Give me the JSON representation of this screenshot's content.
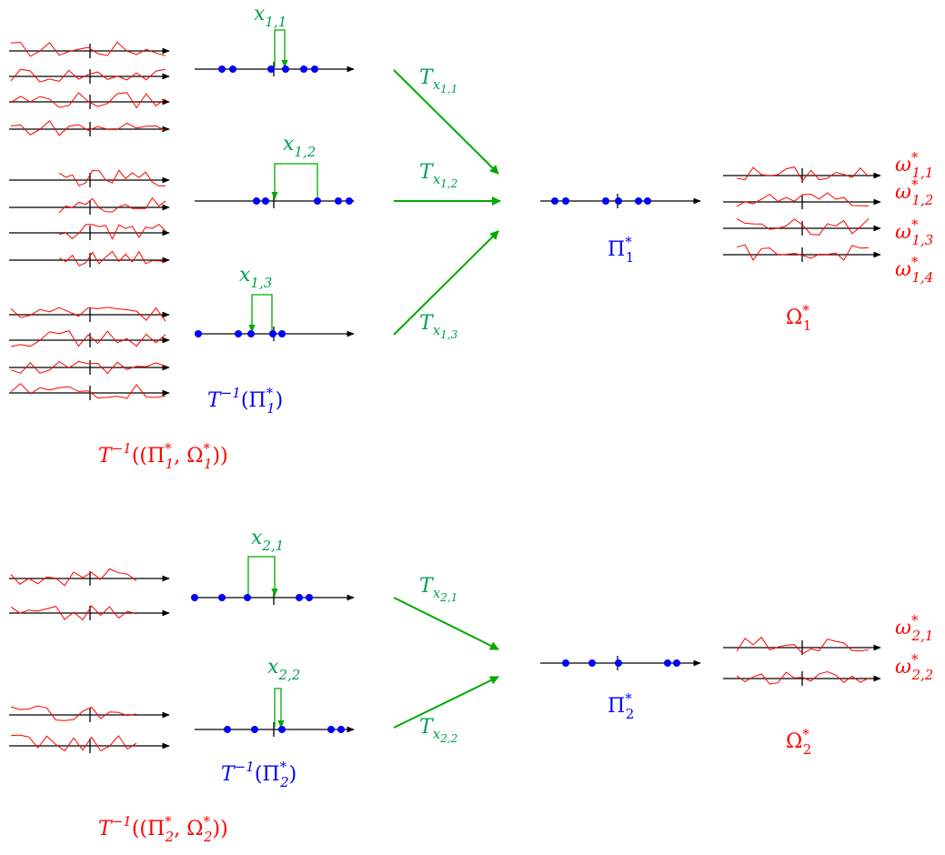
{
  "colors": {
    "axis": "#000000",
    "path": "#ff0000",
    "point": "#0000ff",
    "shift": "#00aa00",
    "label_green": "#00a050",
    "label_blue": "#0000ff",
    "label_red": "#ff0000"
  },
  "group1": {
    "shift_labels": [
      {
        "base": "x",
        "sub": "1,1"
      },
      {
        "base": "x",
        "sub": "1,2"
      },
      {
        "base": "x",
        "sub": "1,3"
      }
    ],
    "map_labels": [
      {
        "base": "T",
        "sub": "x",
        "subsub": "1,1"
      },
      {
        "base": "T",
        "sub": "x",
        "subsub": "1,2"
      },
      {
        "base": "T",
        "sub": "x",
        "subsub": "1,3"
      }
    ],
    "pi_label": {
      "base": "Π",
      "sup": "*",
      "sub": "1"
    },
    "omega_label": {
      "base": "Ω",
      "sup": "*",
      "sub": "1"
    },
    "omega_items": [
      {
        "base": "ω",
        "sup": "*",
        "sub": "1,1"
      },
      {
        "base": "ω",
        "sup": "*",
        "sub": "1,2"
      },
      {
        "base": "ω",
        "sup": "*",
        "sub": "1,3"
      },
      {
        "base": "ω",
        "sup": "*",
        "sub": "1,4"
      }
    ],
    "inverse_pi_label": {
      "pre": "T",
      "exp": "−1",
      "open": "(Π",
      "sup": "*",
      "sub": "1",
      "close": ")"
    },
    "inverse_pair_label": {
      "pre": "T",
      "exp": "−1",
      "open": "((Π",
      "sup1": "*",
      "sub1": "1",
      "mid": ", Ω",
      "sup2": "*",
      "sub2": "1",
      "close": "))"
    }
  },
  "group2": {
    "shift_labels": [
      {
        "base": "x",
        "sub": "2,1"
      },
      {
        "base": "x",
        "sub": "2,2"
      }
    ],
    "map_labels": [
      {
        "base": "T",
        "sub": "x",
        "subsub": "2,1"
      },
      {
        "base": "T",
        "sub": "x",
        "subsub": "2,2"
      }
    ],
    "pi_label": {
      "base": "Π",
      "sup": "*",
      "sub": "2"
    },
    "omega_label": {
      "base": "Ω",
      "sup": "*",
      "sub": "2"
    },
    "omega_items": [
      {
        "base": "ω",
        "sup": "*",
        "sub": "2,1"
      },
      {
        "base": "ω",
        "sup": "*",
        "sub": "2,2"
      }
    ],
    "inverse_pi_label": {
      "pre": "T",
      "exp": "−1",
      "open": "(Π",
      "sup": "*",
      "sub": "2",
      "close": ")"
    },
    "inverse_pair_label": {
      "pre": "T",
      "exp": "−1",
      "open": "((Π",
      "sup1": "*",
      "sub1": "2",
      "mid": ", Ω",
      "sup2": "*",
      "sub2": "2",
      "close": "))"
    }
  }
}
